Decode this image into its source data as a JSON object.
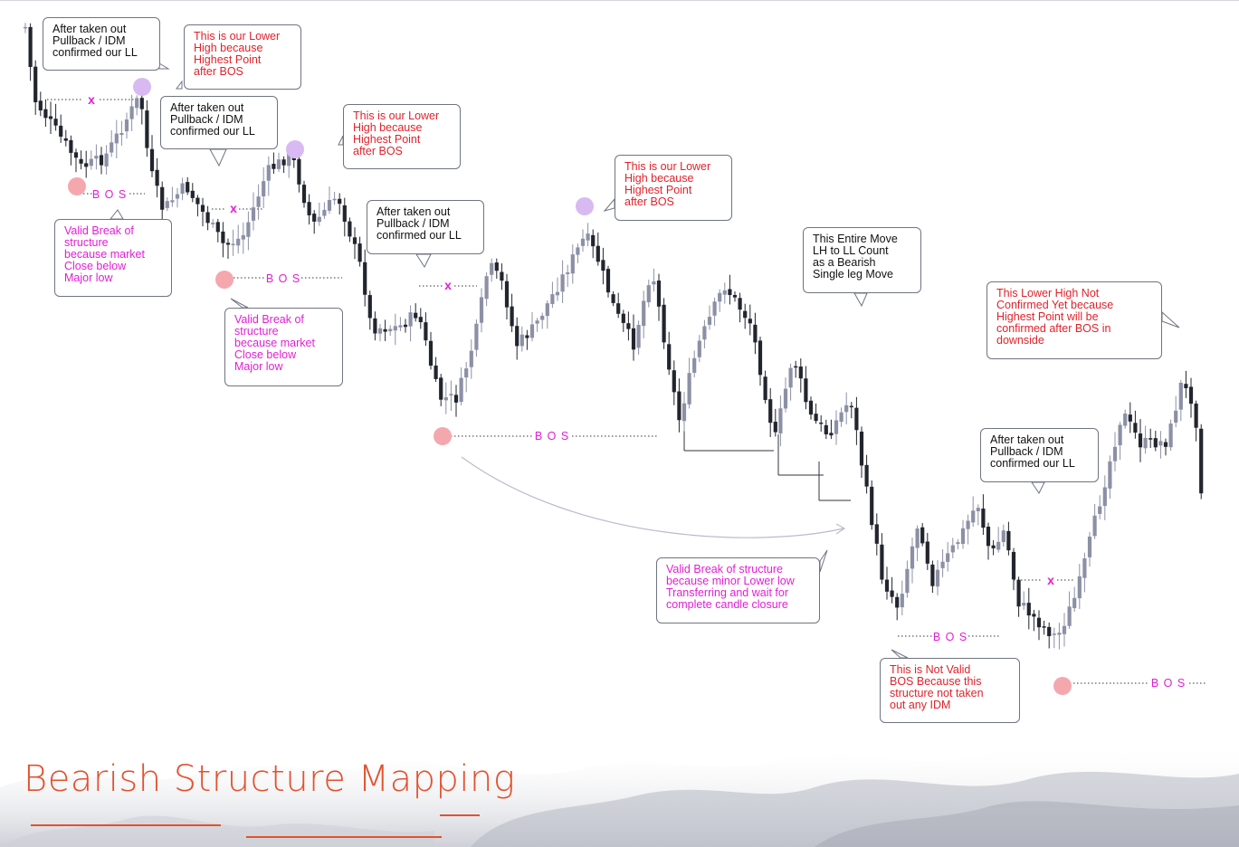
{
  "colors": {
    "bear": "#22252e",
    "bull": "#8c90a6",
    "high_circle": "#d9b9f2",
    "low_circle": "#f5a7ae",
    "bos_text": "#e21fd4",
    "idm_x": "#e21fd4",
    "title": "#e2522f",
    "callout_border": "#6f7480"
  },
  "chart_data": {
    "type": "candlestick",
    "title": "Bearish Structure Mapping",
    "trend": "downtrend: lower highs and lower lows",
    "markers": {
      "idm_symbol": "x",
      "bos_label": "B O S",
      "high_circle_meaning": "Lower High",
      "low_circle_meaning": "Lower Low"
    },
    "annotations": [
      {
        "id": "c1",
        "style": "dark",
        "text": "After taken out\nPullback / IDM\nconfirmed our LL"
      },
      {
        "id": "c2",
        "style": "red",
        "text": "This is our Lower\nHigh because\nHighest Point\nafter BOS"
      },
      {
        "id": "c3",
        "style": "dark",
        "text": "After taken out\nPullback / IDM\nconfirmed our LL"
      },
      {
        "id": "c4",
        "style": "red",
        "text": "This is our Lower\nHigh because\nHighest Point\nafter BOS"
      },
      {
        "id": "c5",
        "style": "magenta",
        "text": "Valid Break of\nstructure\nbecause market\nClose below\nMajor low"
      },
      {
        "id": "c6",
        "style": "red",
        "text": "This is our Lower\nHigh because\nHighest Point\nafter BOS"
      },
      {
        "id": "c7",
        "style": "dark",
        "text": "After taken out\nPullback / IDM\nconfirmed our LL"
      },
      {
        "id": "c8",
        "style": "magenta",
        "text": "Valid Break of\nstructure\nbecause market\nClose below\nMajor low"
      },
      {
        "id": "c9",
        "style": "dark",
        "text": "This Entire Move\nLH to LL Count\nas a Bearish\nSingle leg Move"
      },
      {
        "id": "c10",
        "style": "red",
        "text": "This  Lower High Not\nConfirmed Yet because\nHighest Point will be\nconfirmed after BOS in\ndownside"
      },
      {
        "id": "c11",
        "style": "dark",
        "text": "After taken out\nPullback / IDM\nconfirmed our LL"
      },
      {
        "id": "c12",
        "style": "magenta",
        "text": "Valid Break of structure\nbecause minor Lower low\nTransferring and wait for\ncomplete candle closure"
      },
      {
        "id": "c13",
        "style": "red",
        "text": "This is Not Valid\nBOS Because this\nstructure not taken\nout any IDM"
      }
    ]
  }
}
